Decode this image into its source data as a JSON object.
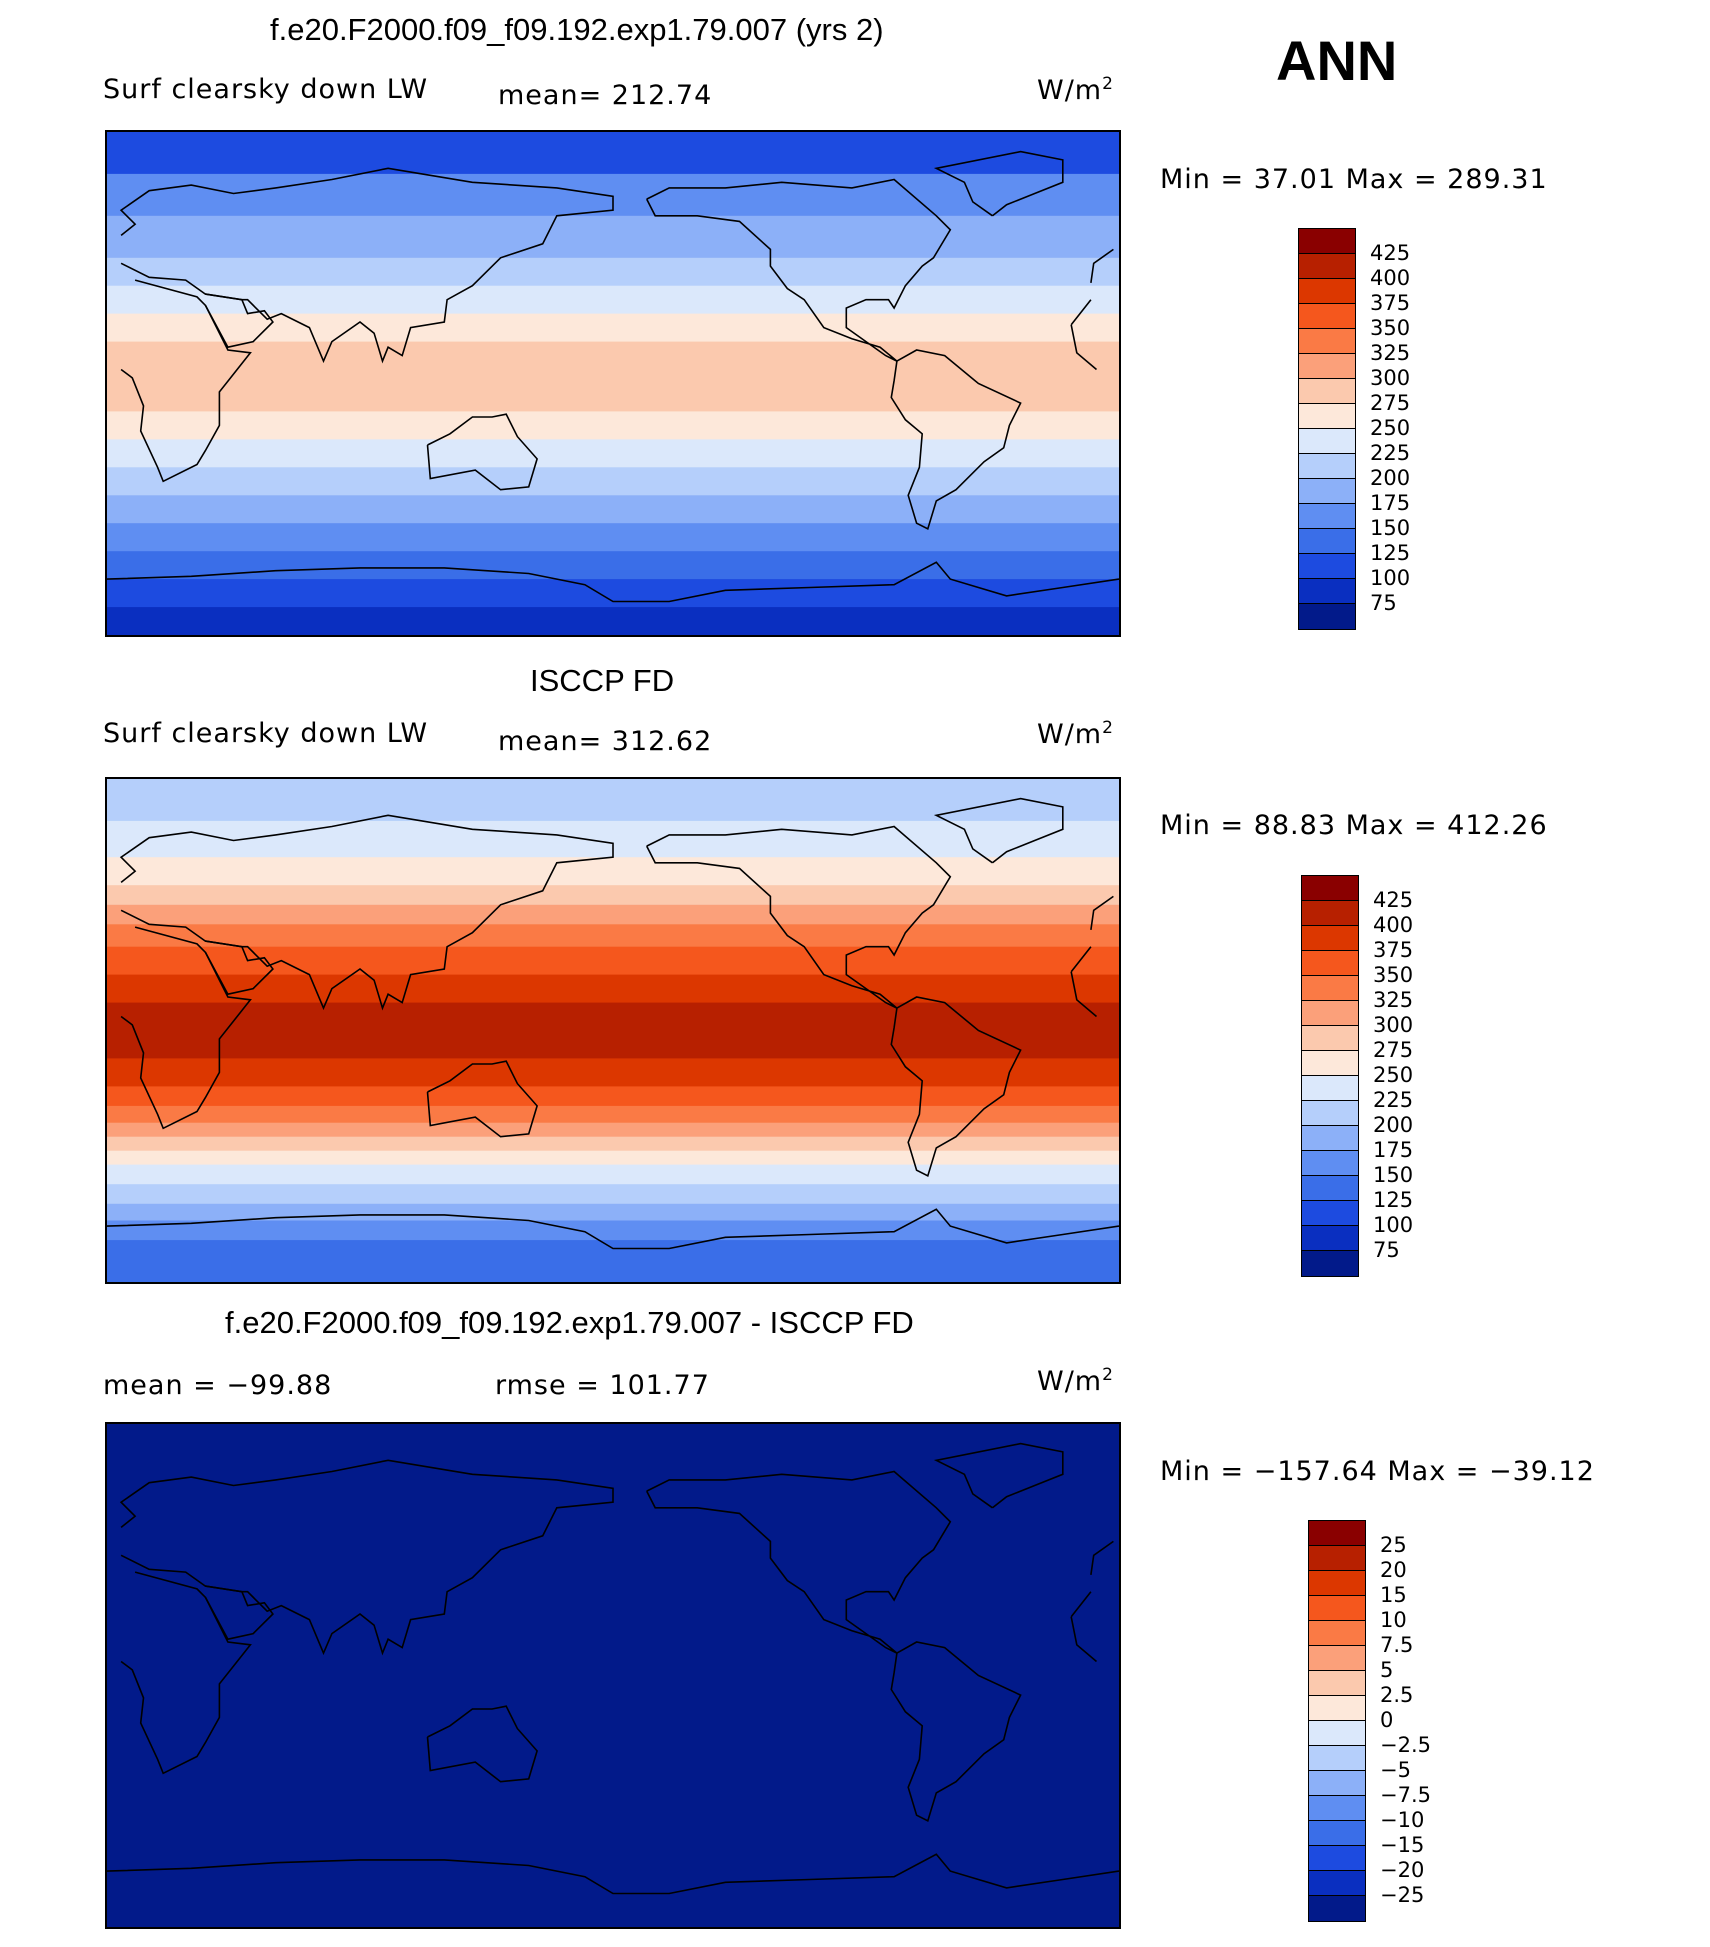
{
  "season": "ANN",
  "units_label": "W/m",
  "units_exp": "2",
  "panels": [
    {
      "title": "f.e20.F2000.f09_f09.192.exp1.79.007 (yrs 2)",
      "left_label": "Surf clearsky down LW",
      "mean_label": "mean= 212.74",
      "minmax": "Min =   37.01 Max = 289.31"
    },
    {
      "title": "ISCCP FD",
      "left_label": "Surf clearsky down LW",
      "mean_label": "mean= 312.62",
      "minmax": "Min =   88.83 Max = 412.26"
    },
    {
      "title": "f.e20.F2000.f09_f09.192.exp1.79.007 - ISCCP FD",
      "left_label": "mean = −99.88",
      "mean_label": "rmse = 101.77",
      "minmax": "Min = −157.64 Max = −39.12"
    }
  ],
  "chart_data": [
    {
      "type": "heatmap",
      "title": "f.e20.F2000.f09_f09.192.exp1.79.007 (yrs 2)",
      "variable": "Surf clearsky down LW",
      "units": "W/m2",
      "mean": 212.74,
      "min": 37.01,
      "max": 289.31,
      "levels": [
        "425",
        "400",
        "375",
        "350",
        "325",
        "300",
        "275",
        "250",
        "225",
        "200",
        "175",
        "150",
        "125",
        "100",
        "75"
      ],
      "colors": [
        "#8a0000",
        "#b72000",
        "#dc3700",
        "#f5571d",
        "#fa7a45",
        "#fba07a",
        "#fbc9ae",
        "#fde8da",
        "#dbe8fb",
        "#b5cffb",
        "#8cb0f8",
        "#5f8ef2",
        "#3a6ee8",
        "#1d4be0",
        "#0a2fc0",
        "#021a8a"
      ],
      "bands": [
        {
          "lat_top": 90,
          "lat_bottom": 75,
          "value": 100
        },
        {
          "lat_top": 75,
          "lat_bottom": 60,
          "value": 150
        },
        {
          "lat_top": 60,
          "lat_bottom": 45,
          "value": 175
        },
        {
          "lat_top": 45,
          "lat_bottom": 35,
          "value": 200
        },
        {
          "lat_top": 35,
          "lat_bottom": 25,
          "value": 225
        },
        {
          "lat_top": 25,
          "lat_bottom": 15,
          "value": 250
        },
        {
          "lat_top": 15,
          "lat_bottom": -10,
          "value": 275
        },
        {
          "lat_top": -10,
          "lat_bottom": -20,
          "value": 250
        },
        {
          "lat_top": -20,
          "lat_bottom": -30,
          "value": 225
        },
        {
          "lat_top": -30,
          "lat_bottom": -40,
          "value": 200
        },
        {
          "lat_top": -40,
          "lat_bottom": -50,
          "value": 175
        },
        {
          "lat_top": -50,
          "lat_bottom": -60,
          "value": 150
        },
        {
          "lat_top": -60,
          "lat_bottom": -70,
          "value": 125
        },
        {
          "lat_top": -70,
          "lat_bottom": -80,
          "value": 100
        },
        {
          "lat_top": -80,
          "lat_bottom": -90,
          "value": 75
        }
      ]
    },
    {
      "type": "heatmap",
      "title": "ISCCP FD",
      "variable": "Surf clearsky down LW",
      "units": "W/m2",
      "mean": 312.62,
      "min": 88.83,
      "max": 412.26,
      "levels": [
        "425",
        "400",
        "375",
        "350",
        "325",
        "300",
        "275",
        "250",
        "225",
        "200",
        "175",
        "150",
        "125",
        "100",
        "75"
      ],
      "colors": [
        "#8a0000",
        "#b72000",
        "#dc3700",
        "#f5571d",
        "#fa7a45",
        "#fba07a",
        "#fbc9ae",
        "#fde8da",
        "#dbe8fb",
        "#b5cffb",
        "#8cb0f8",
        "#5f8ef2",
        "#3a6ee8",
        "#1d4be0",
        "#0a2fc0",
        "#021a8a"
      ],
      "bands": [
        {
          "lat_top": 90,
          "lat_bottom": 75,
          "value": 200
        },
        {
          "lat_top": 75,
          "lat_bottom": 62,
          "value": 225
        },
        {
          "lat_top": 62,
          "lat_bottom": 52,
          "value": 250
        },
        {
          "lat_top": 52,
          "lat_bottom": 45,
          "value": 275
        },
        {
          "lat_top": 45,
          "lat_bottom": 38,
          "value": 300
        },
        {
          "lat_top": 38,
          "lat_bottom": 30,
          "value": 325
        },
        {
          "lat_top": 30,
          "lat_bottom": 20,
          "value": 350
        },
        {
          "lat_top": 20,
          "lat_bottom": 10,
          "value": 375
        },
        {
          "lat_top": 10,
          "lat_bottom": -10,
          "value": 400
        },
        {
          "lat_top": -10,
          "lat_bottom": -20,
          "value": 375
        },
        {
          "lat_top": -20,
          "lat_bottom": -27,
          "value": 350
        },
        {
          "lat_top": -27,
          "lat_bottom": -33,
          "value": 325
        },
        {
          "lat_top": -33,
          "lat_bottom": -38,
          "value": 300
        },
        {
          "lat_top": -38,
          "lat_bottom": -43,
          "value": 275
        },
        {
          "lat_top": -43,
          "lat_bottom": -48,
          "value": 250
        },
        {
          "lat_top": -48,
          "lat_bottom": -55,
          "value": 225
        },
        {
          "lat_top": -55,
          "lat_bottom": -62,
          "value": 200
        },
        {
          "lat_top": -62,
          "lat_bottom": -68,
          "value": 175
        },
        {
          "lat_top": -68,
          "lat_bottom": -75,
          "value": 150
        },
        {
          "lat_top": -75,
          "lat_bottom": -90,
          "value": 125
        }
      ]
    },
    {
      "type": "heatmap",
      "title": "f.e20.F2000.f09_f09.192.exp1.79.007 - ISCCP FD",
      "units": "W/m2",
      "mean": -99.88,
      "rmse": 101.77,
      "min": -157.64,
      "max": -39.12,
      "levels": [
        "25",
        "20",
        "15",
        "10",
        "7.5",
        "5",
        "2.5",
        "0",
        "−2.5",
        "−5",
        "−7.5",
        "−10",
        "−15",
        "−20",
        "−25"
      ],
      "colors": [
        "#8a0000",
        "#b72000",
        "#dc3700",
        "#f5571d",
        "#fa7a45",
        "#fba07a",
        "#fbc9ae",
        "#fde8da",
        "#dbe8fb",
        "#b5cffb",
        "#8cb0f8",
        "#5f8ef2",
        "#3a6ee8",
        "#1d4be0",
        "#0a2fc0",
        "#021a8a"
      ],
      "bands": [
        {
          "lat_top": 90,
          "lat_bottom": -90,
          "value": -99.88
        }
      ]
    }
  ]
}
